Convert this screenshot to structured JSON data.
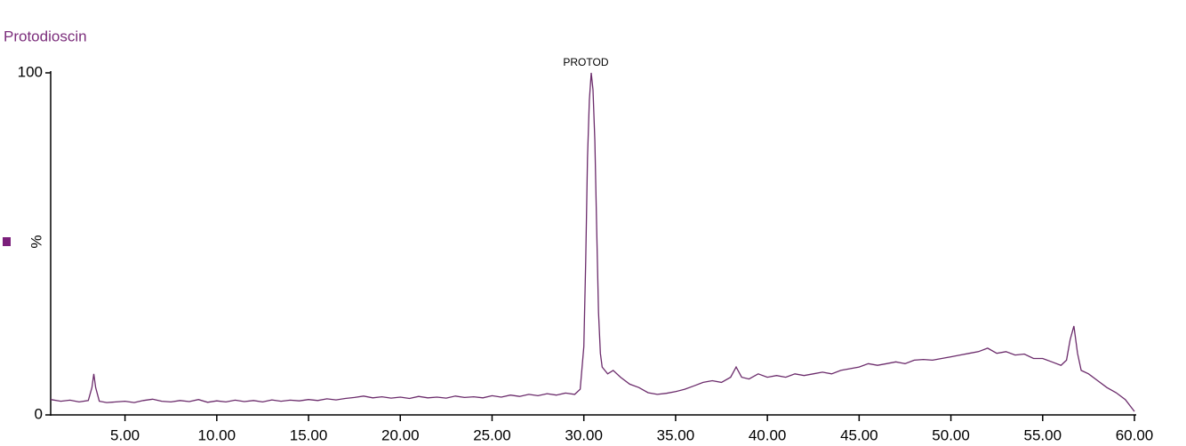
{
  "chart_data": {
    "type": "line",
    "title": "Protodioscin",
    "ylabel": "%",
    "annotation": "PROTOD",
    "x": [
      0.95,
      1.5,
      2.0,
      2.5,
      3.0,
      3.2,
      3.3,
      3.4,
      3.6,
      4.0,
      4.5,
      5.0,
      5.5,
      6.0,
      6.5,
      7.0,
      7.5,
      8.0,
      8.5,
      9.0,
      9.5,
      10,
      10.5,
      11,
      11.5,
      12,
      12.5,
      13,
      13.5,
      14,
      14.5,
      15,
      15.5,
      16,
      16.5,
      17,
      17.5,
      18,
      18.5,
      19,
      19.5,
      20,
      20.5,
      21,
      21.5,
      22,
      22.5,
      23,
      23.5,
      24,
      24.5,
      25,
      25.5,
      26,
      26.5,
      27,
      27.5,
      28,
      28.5,
      29,
      29.5,
      29.8,
      30.0,
      30.1,
      30.2,
      30.3,
      30.4,
      30.5,
      30.6,
      30.7,
      30.8,
      30.9,
      31.0,
      31.3,
      31.6,
      32.0,
      32.5,
      33,
      33.5,
      34,
      34.5,
      35,
      35.5,
      36,
      36.5,
      37,
      37.5,
      38,
      38.3,
      38.6,
      39,
      39.5,
      40,
      40.5,
      41,
      41.5,
      42,
      42.5,
      43,
      43.5,
      44,
      44.5,
      45,
      45.5,
      46,
      46.5,
      47,
      47.5,
      48,
      48.5,
      49,
      49.5,
      50,
      50.5,
      51,
      51.5,
      52,
      52.5,
      53,
      53.5,
      54,
      54.5,
      55,
      55.5,
      56,
      56.3,
      56.5,
      56.7,
      56.9,
      57.1,
      57.5,
      58,
      58.5,
      59,
      59.5,
      60
    ],
    "series": [
      {
        "color": "#6b2b6b",
        "values": [
          4.5,
          4.0,
          4.3,
          3.8,
          4.2,
          8,
          12,
          8,
          4.0,
          3.6,
          3.8,
          4.0,
          3.6,
          4.2,
          4.6,
          4.0,
          3.8,
          4.2,
          3.9,
          4.5,
          3.7,
          4.1,
          3.8,
          4.3,
          3.9,
          4.2,
          3.8,
          4.4,
          4.0,
          4.3,
          4.1,
          4.5,
          4.2,
          4.7,
          4.4,
          4.8,
          5.1,
          5.5,
          5.0,
          5.3,
          4.9,
          5.2,
          4.8,
          5.4,
          5.0,
          5.2,
          4.9,
          5.5,
          5.1,
          5.3,
          5.0,
          5.6,
          5.2,
          5.8,
          5.4,
          6.0,
          5.6,
          6.2,
          5.8,
          6.4,
          6.0,
          7.5,
          20,
          45,
          75,
          92,
          100,
          95,
          80,
          55,
          30,
          18,
          14,
          12,
          13,
          11,
          9,
          8,
          6.5,
          6,
          6.3,
          6.8,
          7.5,
          8.5,
          9.5,
          10,
          9.5,
          11,
          14,
          11,
          10.5,
          12,
          11,
          11.5,
          11,
          12,
          11.5,
          12,
          12.5,
          12,
          13,
          13.5,
          14,
          15,
          14.5,
          15,
          15.5,
          15,
          16,
          16.2,
          16,
          16.5,
          17,
          17.5,
          18,
          18.5,
          19.5,
          18,
          18.5,
          17.5,
          17.8,
          16.5,
          16.5,
          15.5,
          14.5,
          16,
          22,
          26,
          18,
          13,
          12,
          10,
          8,
          6.5,
          4.5,
          1
        ]
      }
    ],
    "xlim": [
      0.95,
      60
    ],
    "xticks": [
      {
        "value": 5,
        "label": "5.00"
      },
      {
        "value": 10,
        "label": "10.00"
      },
      {
        "value": 15,
        "label": "15.00"
      },
      {
        "value": 20,
        "label": "20.00"
      },
      {
        "value": 25,
        "label": "25.00"
      },
      {
        "value": 30,
        "label": "30.00"
      },
      {
        "value": 35,
        "label": "35.00"
      },
      {
        "value": 40,
        "label": "40.00"
      },
      {
        "value": 45,
        "label": "45.00"
      },
      {
        "value": 50,
        "label": "50.00"
      },
      {
        "value": 55,
        "label": "55.00"
      },
      {
        "value": 60,
        "label": "60.00"
      }
    ],
    "ylim": [
      0,
      100
    ],
    "yticks": [
      0,
      100
    ]
  }
}
